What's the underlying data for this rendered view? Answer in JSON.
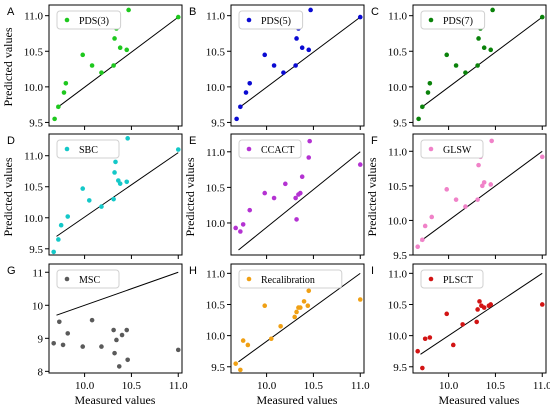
{
  "figure": {
    "ylabel": "Predicted values",
    "xlabel": "Measured values"
  },
  "chart_data": [
    {
      "type": "scatter",
      "letter": "A",
      "legend": "PDS(3)",
      "color": "#1ec81e",
      "xlim": [
        9.62,
        11.04
      ],
      "ylim": [
        9.45,
        11.15
      ],
      "yticks": [
        "9.5",
        "10.0",
        "10.5",
        "11.0"
      ],
      "show_xticks": false,
      "line": [
        [
          9.7,
          9.7
        ],
        [
          11.0,
          10.98
        ]
      ],
      "x": [
        9.68,
        9.72,
        9.78,
        9.8,
        9.98,
        10.08,
        10.18,
        10.31,
        10.32,
        10.34,
        10.36,
        10.38,
        10.45,
        10.47,
        11.0
      ],
      "y": [
        9.55,
        9.72,
        9.92,
        10.05,
        10.45,
        10.3,
        10.2,
        10.3,
        10.68,
        10.82,
        10.95,
        10.55,
        10.52,
        11.08,
        10.98
      ]
    },
    {
      "type": "scatter",
      "letter": "B",
      "legend": "PDS(5)",
      "color": "#0a0ad2",
      "xlim": [
        9.62,
        11.04
      ],
      "ylim": [
        9.45,
        11.15
      ],
      "yticks": [
        "9.5",
        "10.0",
        "10.5",
        "11.0"
      ],
      "show_xticks": false,
      "line": [
        [
          9.7,
          9.7
        ],
        [
          11.0,
          10.98
        ]
      ],
      "x": [
        9.68,
        9.72,
        9.78,
        9.82,
        9.98,
        10.08,
        10.18,
        10.31,
        10.32,
        10.34,
        10.36,
        10.38,
        10.45,
        10.47,
        11.0
      ],
      "y": [
        9.55,
        9.72,
        9.92,
        10.05,
        10.45,
        10.3,
        10.2,
        10.3,
        10.68,
        10.82,
        10.95,
        10.55,
        10.52,
        11.08,
        10.98
      ]
    },
    {
      "type": "scatter",
      "letter": "C",
      "legend": "PDS(7)",
      "color": "#0a820a",
      "xlim": [
        9.62,
        11.04
      ],
      "ylim": [
        9.45,
        11.15
      ],
      "yticks": [
        "9.5",
        "10.0",
        "10.5",
        "11.0"
      ],
      "show_xticks": false,
      "line": [
        [
          9.7,
          9.7
        ],
        [
          11.0,
          10.98
        ]
      ],
      "x": [
        9.68,
        9.72,
        9.78,
        9.8,
        9.98,
        10.08,
        10.18,
        10.31,
        10.32,
        10.34,
        10.36,
        10.38,
        10.45,
        10.47,
        11.0
      ],
      "y": [
        9.55,
        9.72,
        9.92,
        10.05,
        10.45,
        10.3,
        10.2,
        10.3,
        10.68,
        10.82,
        10.95,
        10.55,
        10.52,
        11.08,
        10.98
      ]
    },
    {
      "type": "scatter",
      "letter": "D",
      "legend": "SBC",
      "color": "#14c8c8",
      "xlim": [
        9.62,
        11.04
      ],
      "ylim": [
        9.4,
        11.35
      ],
      "yticks": [
        "9.5",
        "10.0",
        "10.5",
        "11.0"
      ],
      "show_xticks": false,
      "line": [
        [
          9.7,
          9.7
        ],
        [
          11.0,
          11.05
        ]
      ],
      "x": [
        9.67,
        9.72,
        9.75,
        9.82,
        9.98,
        10.05,
        10.18,
        10.31,
        10.32,
        10.33,
        10.36,
        10.38,
        10.45,
        10.46,
        11.0
      ],
      "y": [
        9.45,
        9.65,
        9.88,
        10.02,
        10.47,
        10.28,
        10.18,
        10.3,
        10.73,
        10.9,
        10.6,
        10.55,
        10.58,
        11.28,
        11.1
      ]
    },
    {
      "type": "scatter",
      "letter": "E",
      "legend": "CCACT",
      "color": "#b432d2",
      "xlim": [
        9.62,
        11.04
      ],
      "ylim": [
        9.55,
        11.25
      ],
      "yticks": [
        "10.0",
        "10.5",
        "11.0"
      ],
      "show_xticks": false,
      "line": [
        [
          9.7,
          9.62
        ],
        [
          11.0,
          11.0
        ]
      ],
      "x": [
        9.67,
        9.72,
        9.75,
        9.82,
        9.98,
        10.08,
        10.2,
        10.31,
        10.32,
        10.34,
        10.36,
        10.38,
        10.45,
        10.46,
        11.0
      ],
      "y": [
        9.93,
        9.88,
        9.98,
        10.18,
        10.42,
        10.35,
        10.55,
        10.35,
        10.05,
        10.4,
        10.42,
        10.65,
        10.92,
        11.15,
        10.82
      ]
    },
    {
      "type": "scatter",
      "letter": "F",
      "legend": "GLSW",
      "color": "#f082c8",
      "xlim": [
        9.62,
        11.04
      ],
      "ylim": [
        9.5,
        11.25
      ],
      "yticks": [
        "9.5",
        "10.0",
        "10.5",
        "11.0"
      ],
      "show_xticks": false,
      "line": [
        [
          9.7,
          9.7
        ],
        [
          11.0,
          11.0
        ]
      ],
      "x": [
        9.67,
        9.72,
        9.75,
        9.82,
        9.98,
        10.08,
        10.18,
        10.31,
        10.32,
        10.34,
        10.36,
        10.38,
        10.45,
        10.46,
        11.0
      ],
      "y": [
        9.62,
        9.72,
        9.92,
        10.05,
        10.45,
        10.3,
        10.2,
        10.3,
        10.8,
        10.92,
        10.5,
        10.55,
        10.52,
        11.15,
        10.92
      ]
    },
    {
      "type": "scatter",
      "letter": "G",
      "legend": "MSC",
      "color": "#5a5a5a",
      "xlim": [
        9.62,
        11.04
      ],
      "ylim": [
        7.95,
        11.25
      ],
      "yticks": [
        "8",
        "9",
        "10",
        "11"
      ],
      "show_xticks": true,
      "xticks": [
        "10.0",
        "10.5",
        "11.0"
      ],
      "line": [
        [
          9.7,
          9.7
        ],
        [
          11.0,
          11.0
        ]
      ],
      "x": [
        9.67,
        9.73,
        9.77,
        9.82,
        9.98,
        10.08,
        10.18,
        10.31,
        10.32,
        10.34,
        10.37,
        10.4,
        10.45,
        10.46,
        11.0
      ],
      "y": [
        8.85,
        9.5,
        8.8,
        9.15,
        8.75,
        9.55,
        8.75,
        9.25,
        8.55,
        8.95,
        8.15,
        9.1,
        9.25,
        8.35,
        8.65
      ]
    },
    {
      "type": "scatter",
      "letter": "H",
      "legend": "Recalibration",
      "color": "#f0a014",
      "xlim": [
        9.62,
        11.04
      ],
      "ylim": [
        9.4,
        11.15
      ],
      "yticks": [
        "9.5",
        "10.0",
        "10.5",
        "11.0"
      ],
      "show_xticks": true,
      "xticks": [
        "10.0",
        "10.5",
        "11.0"
      ],
      "line": [
        [
          9.7,
          9.58
        ],
        [
          11.0,
          11.0
        ]
      ],
      "x": [
        9.67,
        9.72,
        9.75,
        9.8,
        9.98,
        10.05,
        10.15,
        10.3,
        10.32,
        10.34,
        10.36,
        10.4,
        10.44,
        10.45,
        11.0
      ],
      "y": [
        9.55,
        9.45,
        9.92,
        9.85,
        10.48,
        9.95,
        10.15,
        10.3,
        10.38,
        10.45,
        10.45,
        10.55,
        10.48,
        10.72,
        10.58
      ]
    },
    {
      "type": "scatter",
      "letter": "I",
      "legend": "PLSCT",
      "color": "#d21414",
      "xlim": [
        9.62,
        11.04
      ],
      "ylim": [
        9.4,
        11.15
      ],
      "yticks": [
        "9.5",
        "10.0",
        "10.5",
        "11.0"
      ],
      "show_xticks": true,
      "xticks": [
        "10.0",
        "10.5",
        "11.0"
      ],
      "line": [
        [
          9.7,
          9.7
        ],
        [
          11.0,
          11.0
        ]
      ],
      "x": [
        9.67,
        9.72,
        9.75,
        9.8,
        9.98,
        10.05,
        10.15,
        10.3,
        10.31,
        10.33,
        10.35,
        10.38,
        10.43,
        10.45,
        11.0
      ],
      "y": [
        9.75,
        9.48,
        9.95,
        9.97,
        10.35,
        9.85,
        10.18,
        10.22,
        10.42,
        10.55,
        10.48,
        10.45,
        10.48,
        10.5,
        10.5
      ]
    }
  ]
}
